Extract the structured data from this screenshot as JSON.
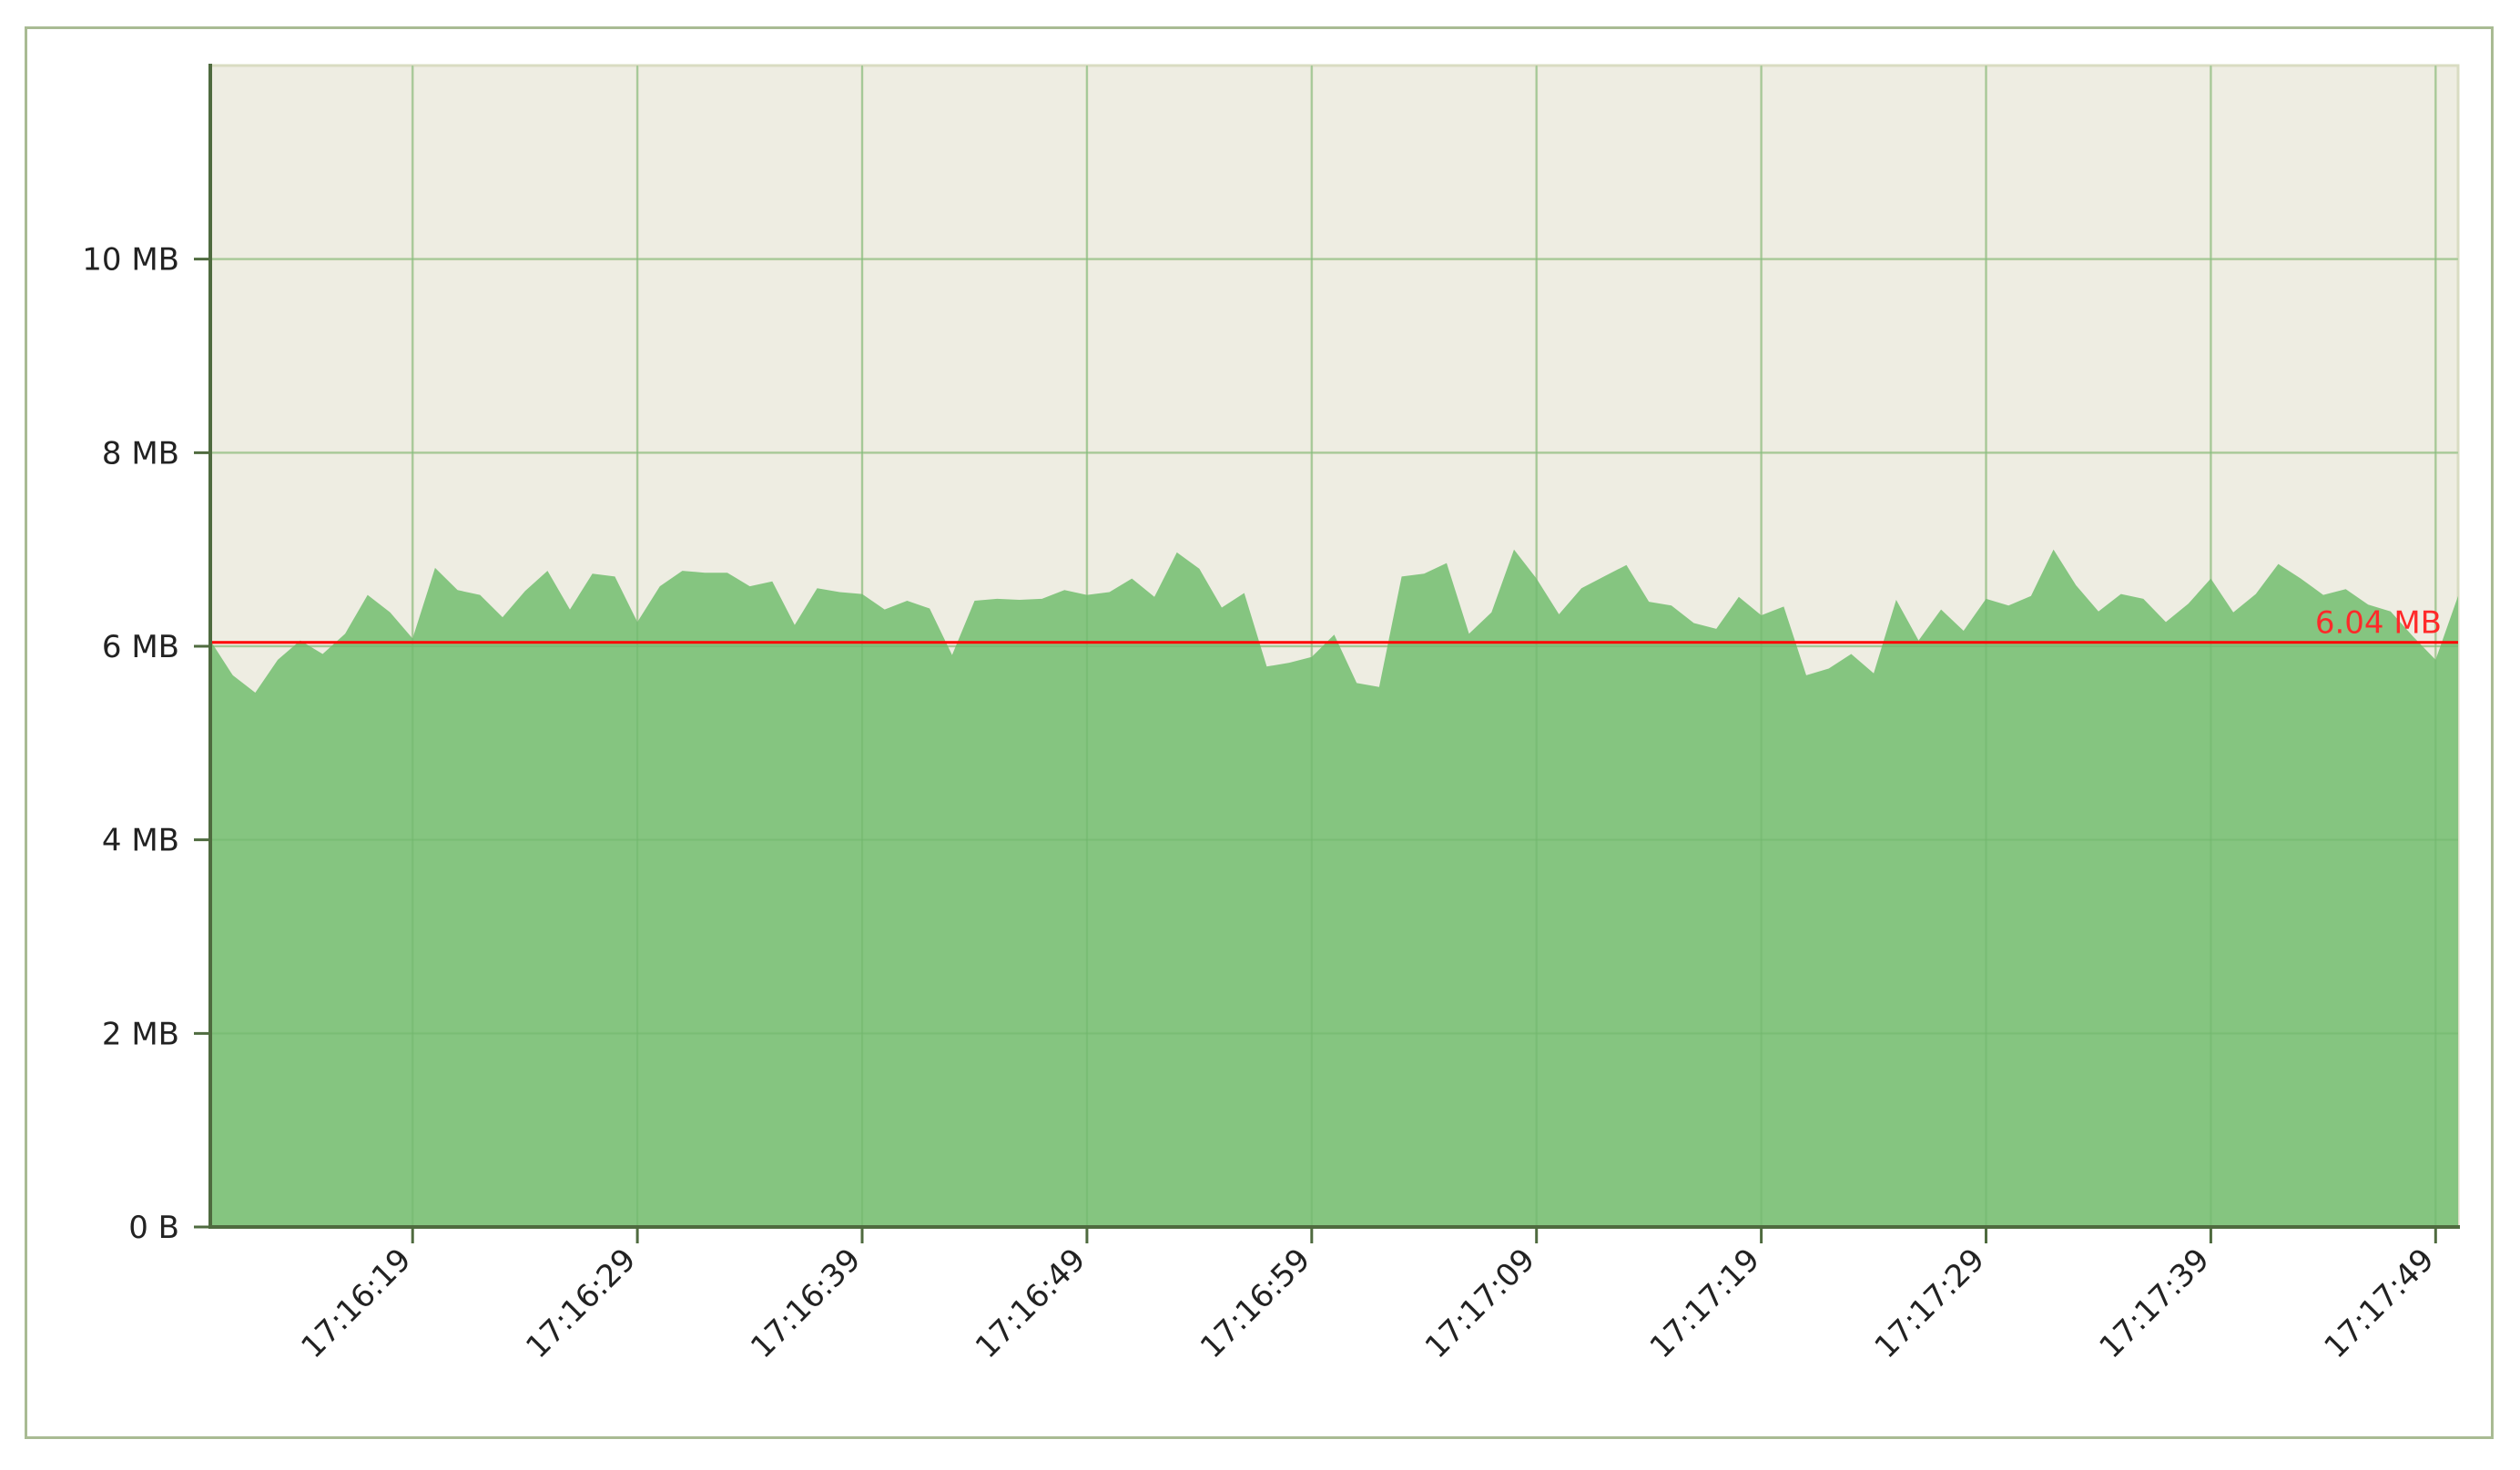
{
  "chart_data": {
    "type": "area",
    "x": [
      "17:16:10",
      "17:16:11",
      "17:16:12",
      "17:16:13",
      "17:16:14",
      "17:16:15",
      "17:16:16",
      "17:16:17",
      "17:16:18",
      "17:16:19",
      "17:16:20",
      "17:16:21",
      "17:16:22",
      "17:16:23",
      "17:16:24",
      "17:16:25",
      "17:16:26",
      "17:16:27",
      "17:16:28",
      "17:16:29",
      "17:16:30",
      "17:16:31",
      "17:16:32",
      "17:16:33",
      "17:16:34",
      "17:16:35",
      "17:16:36",
      "17:16:37",
      "17:16:38",
      "17:16:39",
      "17:16:40",
      "17:16:41",
      "17:16:42",
      "17:16:43",
      "17:16:44",
      "17:16:45",
      "17:16:46",
      "17:16:47",
      "17:16:48",
      "17:16:49",
      "17:16:50",
      "17:16:51",
      "17:16:52",
      "17:16:53",
      "17:16:54",
      "17:16:55",
      "17:16:56",
      "17:16:57",
      "17:16:58",
      "17:16:59",
      "17:17:00",
      "17:17:01",
      "17:17:02",
      "17:17:03",
      "17:17:04",
      "17:17:05",
      "17:17:06",
      "17:17:07",
      "17:17:08",
      "17:17:09",
      "17:17:10",
      "17:17:11",
      "17:17:12",
      "17:17:13",
      "17:17:14",
      "17:17:15",
      "17:17:16",
      "17:17:17",
      "17:17:18",
      "17:17:19",
      "17:17:20",
      "17:17:21",
      "17:17:22",
      "17:17:23",
      "17:17:24",
      "17:17:25",
      "17:17:26",
      "17:17:27",
      "17:17:28",
      "17:17:29",
      "17:17:30",
      "17:17:31",
      "17:17:32",
      "17:17:33",
      "17:17:34",
      "17:17:35",
      "17:17:36",
      "17:17:37",
      "17:17:38",
      "17:17:39",
      "17:17:40",
      "17:17:41",
      "17:17:42",
      "17:17:43",
      "17:17:44",
      "17:17:45",
      "17:17:46",
      "17:17:47",
      "17:17:48",
      "17:17:49",
      "17:17:50"
    ],
    "values_mb": [
      6.06,
      5.7,
      5.52,
      5.86,
      6.06,
      5.92,
      6.13,
      6.53,
      6.35,
      6.08,
      6.81,
      6.58,
      6.53,
      6.3,
      6.57,
      6.78,
      6.38,
      6.75,
      6.72,
      6.25,
      6.62,
      6.78,
      6.76,
      6.76,
      6.62,
      6.67,
      6.22,
      6.6,
      6.56,
      6.54,
      6.38,
      6.47,
      6.39,
      5.91,
      6.47,
      6.49,
      6.48,
      6.49,
      6.58,
      6.53,
      6.56,
      6.7,
      6.51,
      6.97,
      6.8,
      6.4,
      6.55,
      5.79,
      5.83,
      5.89,
      6.12,
      5.62,
      5.58,
      6.72,
      6.75,
      6.86,
      6.13,
      6.35,
      7.0,
      6.7,
      6.33,
      6.6,
      6.72,
      6.84,
      6.46,
      6.42,
      6.24,
      6.18,
      6.51,
      6.32,
      6.41,
      5.7,
      5.77,
      5.92,
      5.72,
      6.48,
      6.06,
      6.38,
      6.16,
      6.49,
      6.42,
      6.52,
      7.0,
      6.63,
      6.36,
      6.54,
      6.49,
      6.25,
      6.44,
      6.7,
      6.35,
      6.54,
      6.85,
      6.7,
      6.53,
      6.59,
      6.43,
      6.36,
      6.1,
      5.86,
      6.52
    ],
    "ylim": [
      0,
      12
    ],
    "ytick_values": [
      0,
      2,
      4,
      6,
      8,
      10
    ],
    "ytick_labels": [
      "0 B",
      "2 MB",
      "4 MB",
      "6 MB",
      "8 MB",
      "10 MB"
    ],
    "xtick_labels": [
      "17:16:19",
      "17:16:29",
      "17:16:39",
      "17:16:49",
      "17:16:59",
      "17:17:09",
      "17:17:19",
      "17:17:29",
      "17:17:39",
      "17:17:49"
    ],
    "reference_line": {
      "value_mb": 6.04,
      "label": "6.04 MB",
      "color": "#ff0000"
    },
    "grid": true,
    "colors": {
      "fill": "#80c37c",
      "plot_bg": "#eeede2",
      "grid": "#d9dcc2",
      "axis": "#4f6b3f",
      "border": "#a9bb93"
    }
  }
}
